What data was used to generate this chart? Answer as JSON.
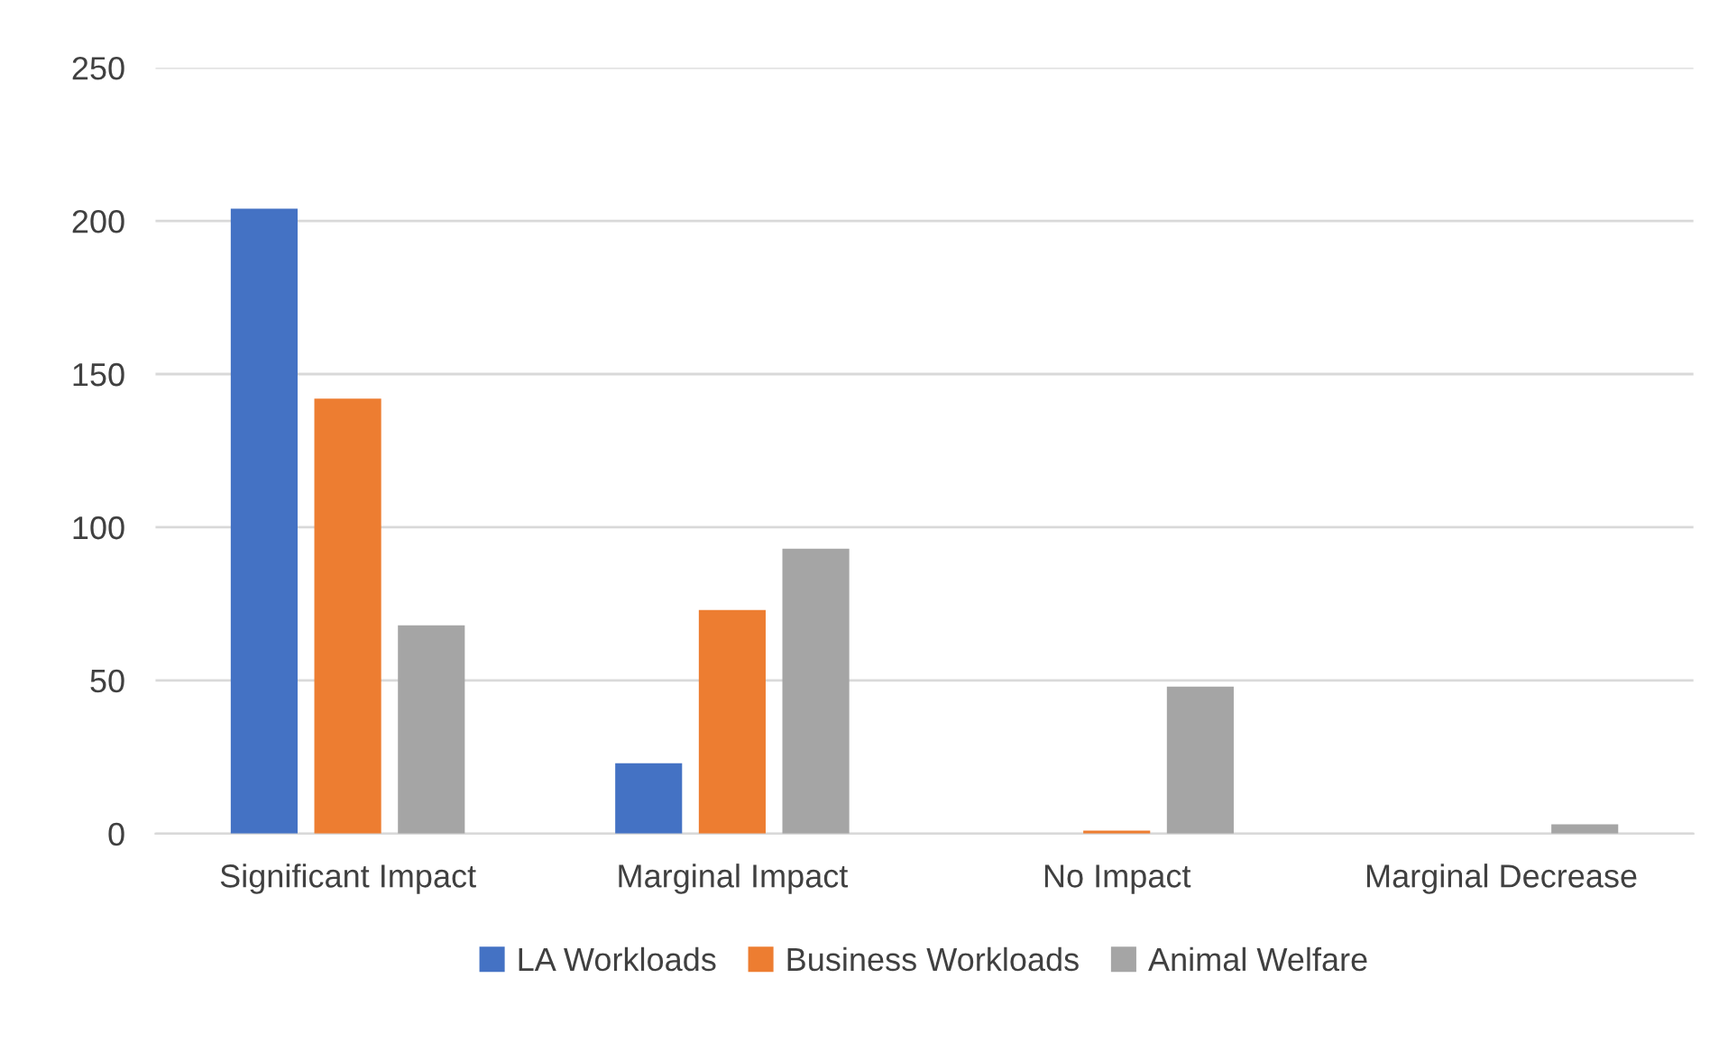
{
  "chart_data": {
    "type": "bar",
    "categories": [
      "Significant Impact",
      "Marginal Impact",
      "No Impact",
      "Marginal Decrease"
    ],
    "series": [
      {
        "name": "LA Workloads",
        "color": "#4472c4",
        "values": [
          204,
          23,
          0,
          0
        ]
      },
      {
        "name": "Business Workloads",
        "color": "#ed7d31",
        "values": [
          142,
          73,
          1,
          0
        ]
      },
      {
        "name": "Animal Welfare",
        "color": "#a5a5a5",
        "values": [
          68,
          93,
          48,
          3
        ]
      }
    ],
    "ylim": [
      0,
      250
    ],
    "yticks": [
      0,
      50,
      100,
      150,
      200,
      250
    ],
    "grid": "y",
    "legend": "bottom"
  }
}
